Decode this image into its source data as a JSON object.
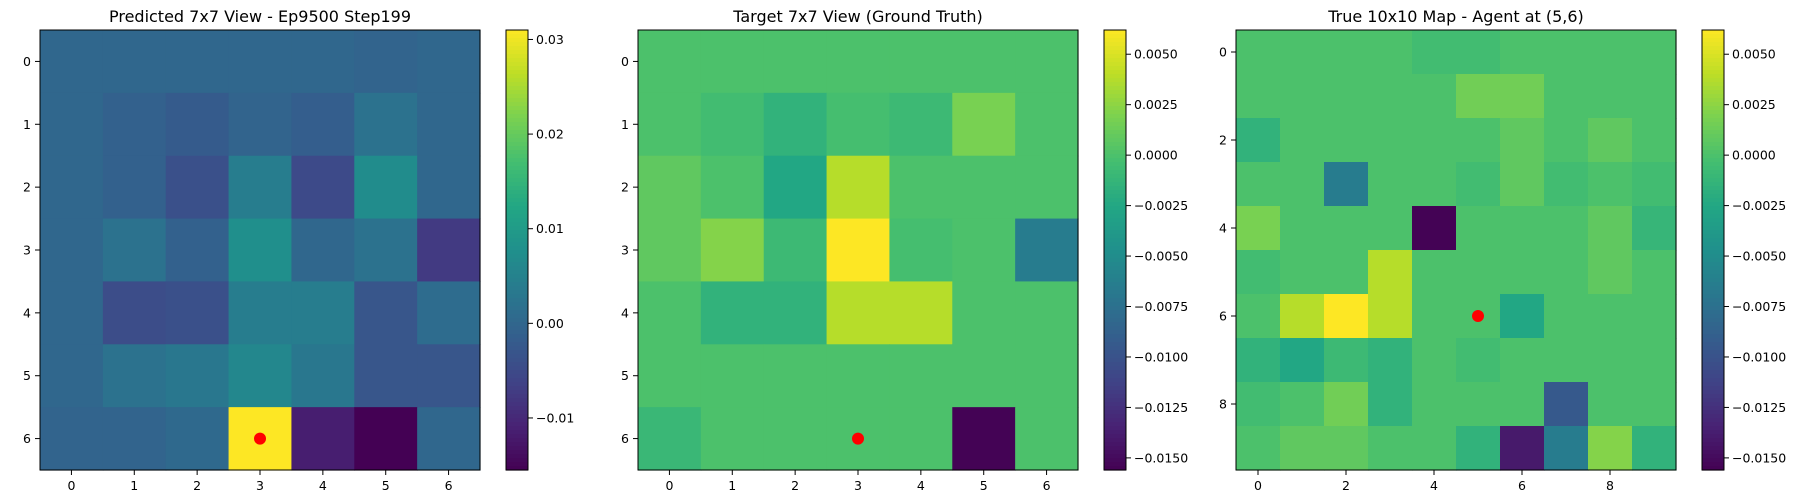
{
  "colormap": "viridis",
  "marker_color": "#ff0000",
  "chart_data": [
    {
      "type": "heatmap",
      "title": "Predicted 7x7 View - Ep9500 Step199",
      "rows": 7,
      "cols": 7,
      "x_ticks": [
        0,
        1,
        2,
        3,
        4,
        5,
        6
      ],
      "y_ticks": [
        0,
        1,
        2,
        3,
        4,
        5,
        6
      ],
      "vmin": -0.0155,
      "vmax": 0.031,
      "colorbar_ticks": [
        -0.01,
        0.0,
        0.01,
        0.02,
        0.03
      ],
      "colorbar_labels": [
        "−0.01",
        "0.00",
        "0.01",
        "0.02",
        "0.03"
      ],
      "marker": {
        "col": 3,
        "row": 6
      },
      "values": [
        [
          0.0,
          0.0,
          0.0,
          0.0,
          0.0,
          -0.0005,
          0.0
        ],
        [
          0.0,
          -0.001,
          -0.002,
          -0.0005,
          -0.0015,
          0.002,
          0.0
        ],
        [
          0.0,
          -0.001,
          -0.004,
          0.004,
          -0.005,
          0.007,
          0.0
        ],
        [
          0.0,
          0.002,
          -0.001,
          0.0075,
          0.0,
          0.002,
          -0.0075
        ],
        [
          0.0,
          -0.0045,
          -0.004,
          0.004,
          0.004,
          -0.003,
          0.001
        ],
        [
          0.0,
          0.002,
          0.003,
          0.006,
          0.003,
          -0.003,
          -0.003
        ],
        [
          -0.0005,
          -0.0005,
          0.0005,
          0.031,
          -0.0115,
          -0.0155,
          0.0
        ]
      ]
    },
    {
      "type": "heatmap",
      "title": "Target 7x7 View (Ground Truth)",
      "rows": 7,
      "cols": 7,
      "x_ticks": [
        0,
        1,
        2,
        3,
        4,
        5,
        6
      ],
      "y_ticks": [
        0,
        1,
        2,
        3,
        4,
        5,
        6
      ],
      "vmin": -0.0156,
      "vmax": 0.0062,
      "colorbar_ticks": [
        -0.015,
        -0.0125,
        -0.01,
        -0.0075,
        -0.005,
        -0.0025,
        0.0,
        0.0025,
        0.005
      ],
      "colorbar_labels": [
        "−0.0150",
        "−0.0125",
        "−0.0100",
        "−0.0075",
        "−0.0050",
        "−0.0025",
        "0.0000",
        "0.0025",
        "0.0050"
      ],
      "marker": {
        "col": 3,
        "row": 6
      },
      "values": [
        [
          0.0,
          0.0,
          0.0,
          0.0,
          0.0,
          0.0,
          0.0
        ],
        [
          0.0,
          -0.0005,
          -0.0015,
          -0.0003,
          -0.0008,
          0.0018,
          0.0
        ],
        [
          0.0008,
          0.0,
          -0.0025,
          0.0038,
          0.0,
          0.0,
          0.0
        ],
        [
          0.0008,
          0.0022,
          -0.0008,
          0.0062,
          -0.0003,
          0.0,
          -0.0065
        ],
        [
          0.0,
          -0.0015,
          -0.0015,
          0.0038,
          0.0038,
          0.0,
          0.0
        ],
        [
          0.0,
          0.0,
          0.0,
          0.0,
          0.0,
          0.0,
          0.0
        ],
        [
          -0.001,
          0.0,
          0.0,
          0.0,
          0.0,
          -0.0155,
          0.0
        ]
      ]
    },
    {
      "type": "heatmap",
      "title": "True 10x10 Map - Agent at (5,6)",
      "rows": 10,
      "cols": 10,
      "x_ticks": [
        0,
        2,
        4,
        6,
        8
      ],
      "y_ticks": [
        0,
        2,
        4,
        6,
        8
      ],
      "vmin": -0.0156,
      "vmax": 0.0062,
      "colorbar_ticks": [
        -0.015,
        -0.0125,
        -0.01,
        -0.0075,
        -0.005,
        -0.0025,
        0.0,
        0.0025,
        0.005
      ],
      "colorbar_labels": [
        "−0.0150",
        "−0.0125",
        "−0.0100",
        "−0.0075",
        "−0.0050",
        "−0.0025",
        "0.0000",
        "0.0025",
        "0.0050"
      ],
      "marker": {
        "col": 5,
        "row": 6
      },
      "values": [
        [
          0.0,
          0.0,
          0.0,
          0.0,
          -0.0005,
          -0.0005,
          0.0,
          0.0,
          0.0,
          0.0
        ],
        [
          0.0,
          0.0,
          0.0,
          0.0,
          0.0,
          0.0015,
          0.0015,
          0.0,
          0.0,
          0.0
        ],
        [
          -0.0015,
          0.0,
          0.0,
          0.0,
          0.0,
          0.0,
          0.0008,
          0.0,
          0.0008,
          0.0
        ],
        [
          0.0,
          0.0,
          -0.0065,
          0.0,
          0.0,
          -0.0005,
          0.0008,
          -0.0005,
          0.0,
          -0.0005
        ],
        [
          0.0018,
          0.0,
          0.0,
          0.0,
          -0.0155,
          0.0,
          0.0,
          0.0,
          0.0008,
          -0.0012
        ],
        [
          -0.0005,
          0.0,
          0.0,
          0.0038,
          0.0,
          0.0,
          0.0,
          0.0,
          0.0008,
          0.0
        ],
        [
          0.0,
          0.0038,
          0.0062,
          0.0038,
          0.0,
          0.0,
          -0.0025,
          0.0,
          0.0,
          0.0
        ],
        [
          -0.0015,
          -0.0025,
          -0.0008,
          -0.0015,
          0.0,
          -0.0005,
          0.0,
          0.0,
          0.0,
          0.0
        ],
        [
          -0.0005,
          0.0,
          0.0015,
          -0.0015,
          0.0,
          0.0,
          0.0,
          -0.0095,
          0.0,
          0.0
        ],
        [
          0.0,
          0.0008,
          0.0008,
          0.0,
          0.0,
          -0.0015,
          -0.014,
          -0.0065,
          0.0022,
          -0.0015
        ]
      ]
    }
  ]
}
